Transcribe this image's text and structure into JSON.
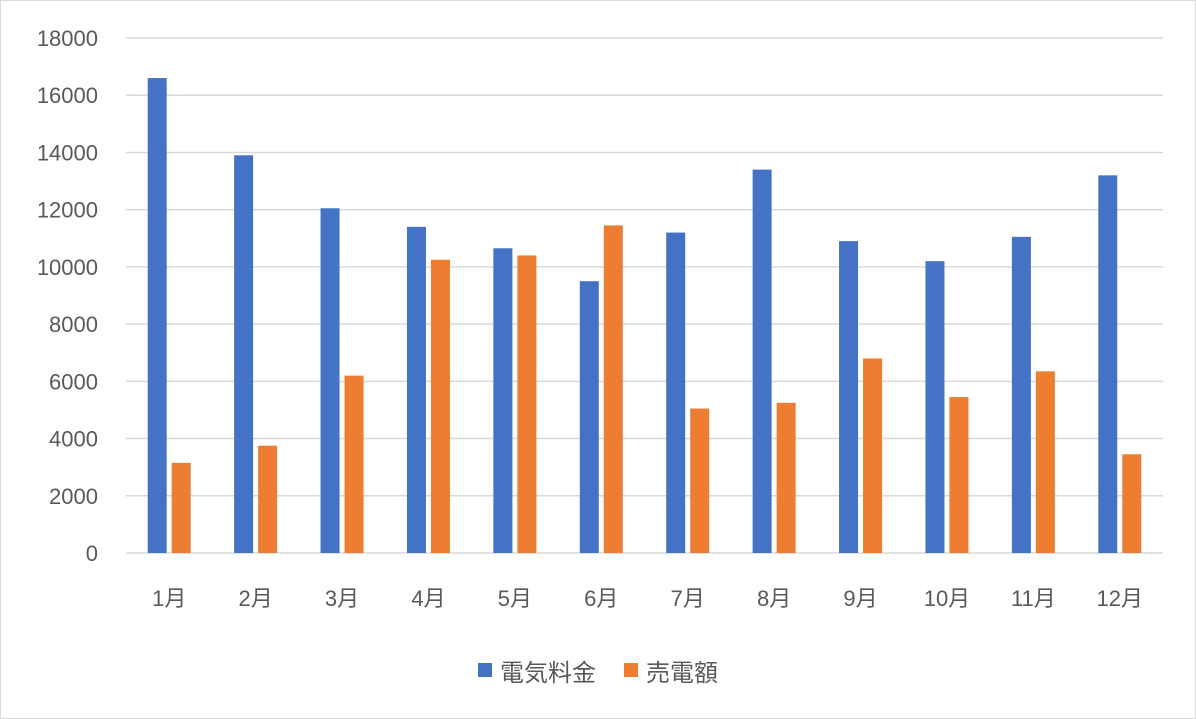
{
  "chart_data": {
    "type": "bar",
    "categories": [
      "1月",
      "2月",
      "3月",
      "4月",
      "5月",
      "6月",
      "7月",
      "8月",
      "9月",
      "10月",
      "11月",
      "12月"
    ],
    "series": [
      {
        "name": "電気料金",
        "color": "#4472C4",
        "values": [
          16600,
          13900,
          12050,
          11400,
          10650,
          9500,
          11200,
          13400,
          10900,
          10200,
          11050,
          13200
        ]
      },
      {
        "name": "売電額",
        "color": "#ED7D31",
        "values": [
          3150,
          3750,
          6200,
          10250,
          10400,
          11450,
          5050,
          5250,
          6800,
          5450,
          6350,
          3450
        ]
      }
    ],
    "ylim": [
      0,
      18000
    ],
    "yticks": [
      0,
      2000,
      4000,
      6000,
      8000,
      10000,
      12000,
      14000,
      16000,
      18000
    ],
    "grid": true,
    "legend_position": "bottom",
    "title": "",
    "xlabel": "",
    "ylabel": ""
  }
}
